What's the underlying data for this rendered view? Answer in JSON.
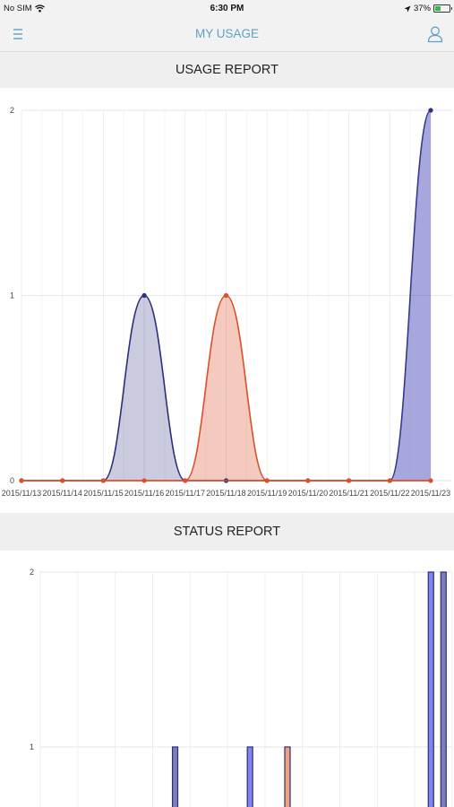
{
  "status_bar": {
    "carrier": "No SIM",
    "time": "6:30 PM",
    "battery": "37%",
    "battery_level": 0.37
  },
  "nav": {
    "title": "MY USAGE",
    "menu_icon": "hamburger-menu-icon",
    "user_icon": "user-profile-icon",
    "accent_color": "#5f9fbf"
  },
  "usage_section": {
    "title": "USAGE REPORT"
  },
  "status_section": {
    "title": "STATUS REPORT"
  },
  "chart_data": [
    {
      "type": "area",
      "title": "USAGE REPORT",
      "categories": [
        "2015/11/13",
        "2015/11/14",
        "2015/11/15",
        "2015/11/16",
        "2015/11/17",
        "2015/11/18",
        "2015/11/19",
        "2015/11/20",
        "2015/11/21",
        "2015/11/22",
        "2015/11/23"
      ],
      "yticks": [
        "0",
        "1",
        "2"
      ],
      "ylim": [
        0,
        2
      ],
      "grid": true,
      "series": [
        {
          "values": [
            0,
            0,
            0,
            1,
            0,
            0,
            0,
            0,
            0,
            0,
            2
          ],
          "color": "#2c2f7a"
        },
        {
          "values": [
            0,
            0,
            0,
            0,
            0,
            1,
            0,
            0,
            0,
            0,
            0
          ],
          "color": "#d9502a"
        }
      ]
    },
    {
      "type": "bar",
      "title": "STATUS REPORT",
      "yticks": [
        "1",
        "2"
      ],
      "ylim": [
        0,
        2
      ],
      "grid": true,
      "bars": [
        {
          "category_index": 3,
          "value": 1,
          "color": "#7b7fb8"
        },
        {
          "category_index": 5,
          "value": 1,
          "color": "#7e84f0"
        },
        {
          "category_index": 6,
          "value": 1,
          "color": "#f0a07a"
        },
        {
          "category_index": 10,
          "value": 2,
          "color": "#7e84f0"
        },
        {
          "category_index": 10,
          "value": 2,
          "color": "#7b7fb8"
        }
      ]
    }
  ]
}
